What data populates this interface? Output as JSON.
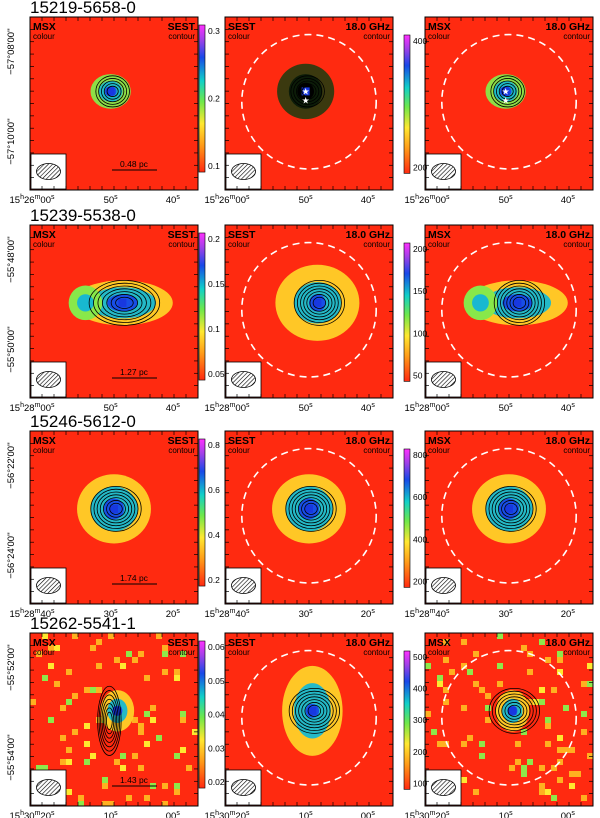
{
  "figure": {
    "rows": [
      {
        "source": "15219-5658-0",
        "dec_ticks": [
          "−57°08'00''",
          "−57°10'00''"
        ],
        "ra_ticks": [
          [
            "15",
            "26",
            "00"
          ],
          [
            "50"
          ],
          [
            "40"
          ]
        ],
        "scale_bar": "0.48 pc",
        "colorbar_msx": [
          "0.3",
          "0.2",
          "0.1"
        ],
        "colorbar_sest": [
          "400",
          "200"
        ],
        "panels": [
          {
            "colour": "MSX",
            "contour": "SEST"
          },
          {
            "colour": "SEST",
            "contour": "18.0 GHz"
          },
          {
            "colour": "MSX",
            "contour": "18.0 GHz"
          }
        ]
      },
      {
        "source": "15239-5538-0",
        "dec_ticks": [
          "−55°48'00''",
          "−55°50'00''"
        ],
        "ra_ticks": [
          [
            "15",
            "28",
            "00"
          ],
          [
            "50"
          ],
          [
            "40"
          ]
        ],
        "scale_bar": "1.27 pc",
        "colorbar_msx": [
          "0.2",
          "0.15",
          "0.1",
          "0.05"
        ],
        "colorbar_sest": [
          "200",
          "150",
          "100",
          "50"
        ],
        "panels": [
          {
            "colour": "MSX",
            "contour": "SEST"
          },
          {
            "colour": "SEST",
            "contour": "18.0 GHz"
          },
          {
            "colour": "MSX",
            "contour": "18.0 GHz"
          }
        ]
      },
      {
        "source": "15246-5612-0",
        "dec_ticks": [
          "−56°22'00''",
          "−56°24'00''"
        ],
        "ra_ticks": [
          [
            "15",
            "28",
            "40"
          ],
          [
            "30"
          ],
          [
            "20"
          ]
        ],
        "scale_bar": "1.74 pc",
        "colorbar_msx": [
          "0.8",
          "0.6",
          "0.4",
          "0.2"
        ],
        "colorbar_sest": [
          "800",
          "600",
          "400",
          "200"
        ],
        "panels": [
          {
            "colour": "MSX",
            "contour": "SEST"
          },
          {
            "colour": "SEST",
            "contour": "18.0 GHz"
          },
          {
            "colour": "MSX",
            "contour": "18.0 GHz"
          }
        ]
      },
      {
        "source": "15262-5541-1",
        "dec_ticks": [
          "−55°52'00''",
          "−55°54'00''"
        ],
        "ra_ticks": [
          [
            "15",
            "30",
            "20"
          ],
          [
            "10"
          ],
          [
            "00"
          ]
        ],
        "scale_bar": "1.43 pc",
        "colorbar_msx": [
          "0.06",
          "0.05",
          "0.04",
          "0.03",
          "0.02"
        ],
        "colorbar_sest": [
          "500",
          "400",
          "300",
          "200",
          "100"
        ],
        "panels": [
          {
            "colour": "MSX",
            "contour": "SEST"
          },
          {
            "colour": "SEST",
            "contour": "18.0 GHz"
          },
          {
            "colour": "MSX",
            "contour": "18.0 GHz"
          }
        ]
      }
    ],
    "words": {
      "colour": "colour",
      "contour": "contour"
    },
    "colors": {
      "background_map": "#ff2a10",
      "axis": "#000000",
      "circle": "#ffffff"
    }
  }
}
